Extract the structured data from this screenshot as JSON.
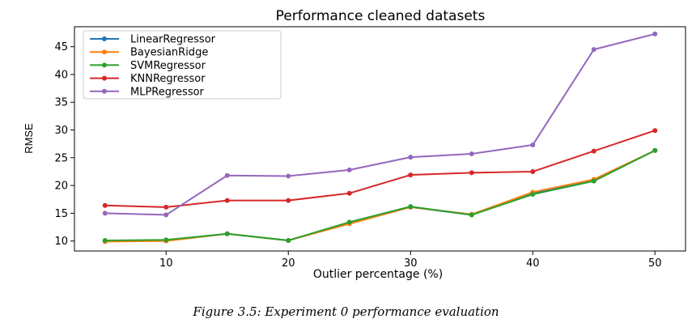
{
  "chart_data": {
    "type": "line",
    "title": "Performance cleaned datasets",
    "xlabel": "Outlier percentage (%)",
    "ylabel": "RMSE",
    "x": [
      5,
      10,
      15,
      20,
      25,
      30,
      35,
      40,
      45,
      50
    ],
    "xlim": [
      2.5,
      52.5
    ],
    "ylim": [
      8.2,
      48.6
    ],
    "xticks": [
      10,
      20,
      30,
      40,
      50
    ],
    "yticks": [
      10,
      15,
      20,
      25,
      30,
      35,
      40,
      45
    ],
    "grid": false,
    "legend_position": "top-left",
    "series": [
      {
        "name": "LinearRegressor",
        "color": "#1f77b4",
        "values": [
          10.0,
          10.1,
          11.3,
          10.1,
          13.3,
          16.1,
          14.7,
          18.6,
          21.0,
          26.3
        ]
      },
      {
        "name": "BayesianRidge",
        "color": "#ff7f0e",
        "values": [
          9.9,
          10.0,
          11.3,
          10.1,
          13.1,
          16.1,
          14.8,
          18.8,
          21.1,
          26.3
        ]
      },
      {
        "name": "SVMRegressor",
        "color": "#2ca02c",
        "values": [
          10.1,
          10.2,
          11.3,
          10.1,
          13.4,
          16.2,
          14.7,
          18.4,
          20.8,
          26.3
        ]
      },
      {
        "name": "KNNRegressor",
        "color": "#d62728",
        "values": [
          16.4,
          16.1,
          17.3,
          17.3,
          18.6,
          21.9,
          22.3,
          22.5,
          26.2,
          29.9
        ]
      },
      {
        "name": "MLPRegressor",
        "color": "#9467bd",
        "values": [
          15.0,
          14.7,
          21.8,
          21.7,
          22.8,
          25.1,
          25.7,
          27.3,
          44.5,
          47.3
        ]
      }
    ]
  },
  "caption": "Figure 3.5: Experiment 0 performance evaluation"
}
